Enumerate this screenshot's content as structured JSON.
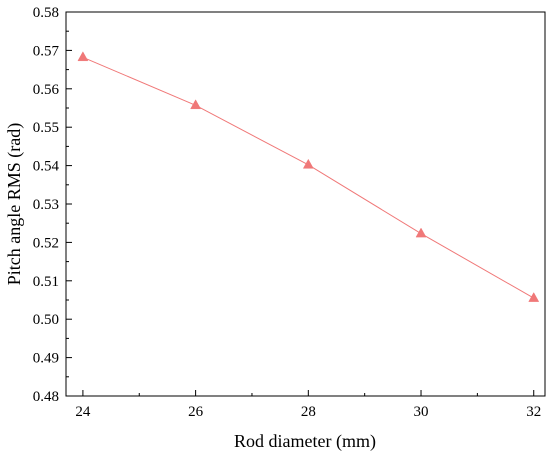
{
  "chart_data": {
    "type": "line",
    "xlabel": "Rod diameter (mm)",
    "ylabel": "Pitch angle RMS (rad)",
    "xlim": [
      23.7,
      32.2
    ],
    "ylim": [
      0.48,
      0.58
    ],
    "x_ticks": [
      "24",
      "26",
      "28",
      "30",
      "32"
    ],
    "y_ticks": [
      "0.48",
      "0.49",
      "0.50",
      "0.51",
      "0.52",
      "0.53",
      "0.54",
      "0.55",
      "0.56",
      "0.57",
      "0.58"
    ],
    "grid": false,
    "series": [
      {
        "marker": "triangle",
        "color": "#F07878",
        "x": [
          24,
          26,
          28,
          30,
          32
        ],
        "y": [
          0.5682,
          0.5557,
          0.5402,
          0.5223,
          0.5055
        ]
      }
    ]
  }
}
